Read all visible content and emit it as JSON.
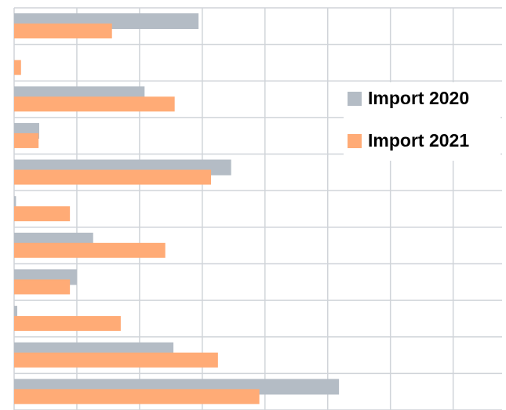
{
  "chart_data": {
    "type": "hbar",
    "categories": [
      null,
      null,
      null,
      null,
      null,
      null,
      null,
      null,
      null,
      null,
      null
    ],
    "series": [
      {
        "name": "Import 2020",
        "color": "#b4bcc5",
        "values": [
          2.94,
          0,
          2.08,
          0.4,
          3.46,
          0.03,
          1.26,
          1.0,
          0.05,
          2.54,
          5.18
        ]
      },
      {
        "name": "Import 2021",
        "color": "#ffab76",
        "values": [
          1.56,
          0.11,
          2.56,
          0.39,
          3.14,
          0.89,
          2.41,
          0.89,
          1.7,
          3.25,
          3.91
        ]
      }
    ],
    "xlim": [
      0,
      7.78
    ],
    "xticks": [
      0,
      1,
      2,
      3,
      4,
      5,
      6,
      7
    ],
    "grid": true,
    "legend": "right"
  }
}
